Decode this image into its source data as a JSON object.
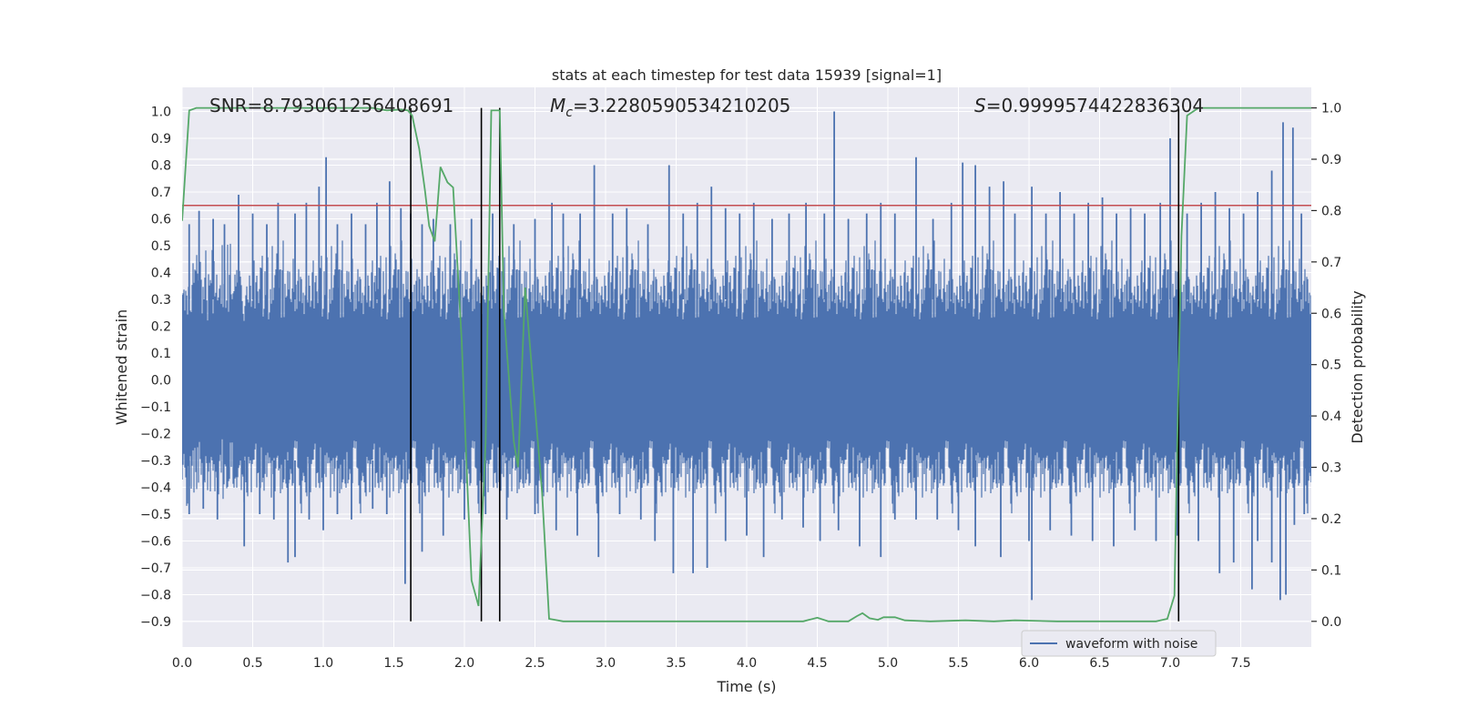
{
  "chart_data": {
    "type": "line",
    "title": "stats at each timestep for test data 15939 [signal=1]",
    "xlabel": "Time (s)",
    "ylabel": "Whitened strain",
    "y2label": "Detection probability",
    "xlim": [
      0.0,
      8.0
    ],
    "ylim": [
      -0.995,
      1.09
    ],
    "y2lim": [
      -0.05,
      1.04
    ],
    "x_ticks": [
      0.0,
      0.5,
      1.0,
      1.5,
      2.0,
      2.5,
      3.0,
      3.5,
      4.0,
      4.5,
      5.0,
      5.5,
      6.0,
      6.5,
      7.0,
      7.5
    ],
    "y_ticks": [
      -0.9,
      -0.8,
      -0.7,
      -0.6,
      -0.5,
      -0.4,
      -0.3,
      -0.2,
      -0.1,
      0.0,
      0.1,
      0.2,
      0.3,
      0.4,
      0.5,
      0.6,
      0.7,
      0.8,
      0.9,
      1.0
    ],
    "y2_ticks": [
      0.0,
      0.1,
      0.2,
      0.3,
      0.4,
      0.5,
      0.6,
      0.7,
      0.8,
      0.9,
      1.0
    ],
    "grid": true,
    "legend": {
      "location": "lower-right",
      "entries": [
        "waveform with noise"
      ]
    },
    "annotations": {
      "snr": "SNR=8.793061256408691",
      "mc_symbol": "M",
      "mc_sub": "c",
      "mc_value": "=3.2280590534210205",
      "s_symbol": "S",
      "s_value": "=0.9999574422836304"
    },
    "waveform": {
      "name": "waveform with noise",
      "color": "#4c72b0",
      "spikes": [
        [
          0.05,
          0.58
        ],
        [
          0.12,
          0.63
        ],
        [
          0.22,
          0.6
        ],
        [
          0.3,
          0.58
        ],
        [
          0.4,
          0.69
        ],
        [
          0.5,
          0.62
        ],
        [
          0.6,
          0.58
        ],
        [
          0.68,
          0.66
        ],
        [
          0.8,
          0.62
        ],
        [
          0.88,
          0.66
        ],
        [
          0.97,
          0.72
        ],
        [
          1.02,
          0.83
        ],
        [
          1.1,
          0.58
        ],
        [
          1.2,
          0.62
        ],
        [
          1.3,
          0.58
        ],
        [
          1.38,
          0.66
        ],
        [
          1.47,
          0.74
        ],
        [
          1.55,
          0.64
        ],
        [
          1.62,
          0.62
        ],
        [
          1.7,
          0.58
        ],
        [
          1.78,
          0.6
        ],
        [
          1.9,
          0.58
        ],
        [
          2.05,
          0.6
        ],
        [
          2.2,
          0.62
        ],
        [
          2.35,
          0.58
        ],
        [
          2.5,
          0.6
        ],
        [
          2.62,
          0.66
        ],
        [
          2.7,
          0.62
        ],
        [
          2.82,
          0.62
        ],
        [
          2.92,
          0.8
        ],
        [
          3.05,
          0.62
        ],
        [
          3.15,
          0.64
        ],
        [
          3.3,
          0.58
        ],
        [
          3.45,
          0.8
        ],
        [
          3.55,
          0.62
        ],
        [
          3.65,
          0.66
        ],
        [
          3.75,
          0.72
        ],
        [
          3.85,
          0.64
        ],
        [
          3.95,
          0.62
        ],
        [
          4.05,
          0.66
        ],
        [
          4.18,
          0.6
        ],
        [
          4.3,
          0.62
        ],
        [
          4.42,
          0.66
        ],
        [
          4.55,
          0.62
        ],
        [
          4.62,
          1.0
        ],
        [
          4.72,
          0.6
        ],
        [
          4.85,
          0.62
        ],
        [
          4.95,
          0.66
        ],
        [
          5.05,
          0.62
        ],
        [
          5.2,
          0.83
        ],
        [
          5.32,
          0.6
        ],
        [
          5.45,
          0.66
        ],
        [
          5.53,
          0.81
        ],
        [
          5.62,
          0.8
        ],
        [
          5.72,
          0.72
        ],
        [
          5.82,
          0.74
        ],
        [
          5.9,
          0.62
        ],
        [
          6.02,
          0.72
        ],
        [
          6.12,
          0.62
        ],
        [
          6.22,
          0.7
        ],
        [
          6.32,
          0.62
        ],
        [
          6.42,
          0.66
        ],
        [
          6.52,
          0.68
        ],
        [
          6.62,
          0.62
        ],
        [
          6.72,
          0.64
        ],
        [
          6.82,
          0.62
        ],
        [
          6.93,
          0.66
        ],
        [
          7.0,
          0.9
        ],
        [
          7.12,
          0.62
        ],
        [
          7.22,
          0.66
        ],
        [
          7.32,
          0.7
        ],
        [
          7.42,
          0.64
        ],
        [
          7.52,
          0.62
        ],
        [
          7.62,
          0.7
        ],
        [
          7.72,
          0.78
        ],
        [
          7.8,
          0.96
        ],
        [
          7.87,
          0.94
        ],
        [
          7.93,
          0.62
        ]
      ],
      "dips": [
        [
          0.05,
          -0.5
        ],
        [
          0.15,
          -0.48
        ],
        [
          0.25,
          -0.52
        ],
        [
          0.44,
          -0.62
        ],
        [
          0.55,
          -0.5
        ],
        [
          0.65,
          -0.52
        ],
        [
          0.75,
          -0.68
        ],
        [
          0.8,
          -0.66
        ],
        [
          0.9,
          -0.52
        ],
        [
          1.0,
          -0.56
        ],
        [
          1.1,
          -0.5
        ],
        [
          1.2,
          -0.52
        ],
        [
          1.35,
          -0.48
        ],
        [
          1.45,
          -0.5
        ],
        [
          1.58,
          -0.76
        ],
        [
          1.7,
          -0.64
        ],
        [
          1.85,
          -0.58
        ],
        [
          2.0,
          -0.52
        ],
        [
          2.15,
          -0.5
        ],
        [
          2.3,
          -0.52
        ],
        [
          2.5,
          -0.5
        ],
        [
          2.65,
          -0.56
        ],
        [
          2.8,
          -0.58
        ],
        [
          2.95,
          -0.66
        ],
        [
          3.1,
          -0.5
        ],
        [
          3.25,
          -0.52
        ],
        [
          3.35,
          -0.6
        ],
        [
          3.48,
          -0.72
        ],
        [
          3.62,
          -0.72
        ],
        [
          3.72,
          -0.7
        ],
        [
          3.85,
          -0.6
        ],
        [
          4.0,
          -0.58
        ],
        [
          4.12,
          -0.66
        ],
        [
          4.25,
          -0.52
        ],
        [
          4.4,
          -0.55
        ],
        [
          4.52,
          -0.6
        ],
        [
          4.65,
          -0.56
        ],
        [
          4.8,
          -0.62
        ],
        [
          4.95,
          -0.66
        ],
        [
          5.05,
          -0.52
        ],
        [
          5.2,
          -0.52
        ],
        [
          5.35,
          -0.52
        ],
        [
          5.5,
          -0.56
        ],
        [
          5.62,
          -0.62
        ],
        [
          5.8,
          -0.66
        ],
        [
          6.0,
          -0.6
        ],
        [
          6.02,
          -0.82
        ],
        [
          6.15,
          -0.56
        ],
        [
          6.3,
          -0.58
        ],
        [
          6.45,
          -0.6
        ],
        [
          6.6,
          -0.62
        ],
        [
          6.75,
          -0.56
        ],
        [
          6.9,
          -0.6
        ],
        [
          7.05,
          -0.58
        ],
        [
          7.2,
          -0.6
        ],
        [
          7.35,
          -0.72
        ],
        [
          7.45,
          -0.68
        ],
        [
          7.58,
          -0.78
        ],
        [
          7.62,
          -0.6
        ],
        [
          7.72,
          -0.68
        ],
        [
          7.78,
          -0.82
        ],
        [
          7.82,
          -0.8
        ],
        [
          7.88,
          -0.54
        ],
        [
          7.95,
          -0.5
        ]
      ]
    },
    "detection_probability": {
      "color": "#55a868",
      "points": [
        [
          0.0,
          0.78
        ],
        [
          0.05,
          0.995
        ],
        [
          0.1,
          1.0
        ],
        [
          0.4,
          1.0
        ],
        [
          0.8,
          1.0
        ],
        [
          1.2,
          1.0
        ],
        [
          1.35,
          1.0
        ],
        [
          1.45,
          0.995
        ],
        [
          1.55,
          0.997
        ],
        [
          1.6,
          0.995
        ],
        [
          1.63,
          0.985
        ],
        [
          1.68,
          0.92
        ],
        [
          1.72,
          0.84
        ],
        [
          1.75,
          0.77
        ],
        [
          1.79,
          0.74
        ],
        [
          1.83,
          0.885
        ],
        [
          1.88,
          0.855
        ],
        [
          1.92,
          0.845
        ],
        [
          1.98,
          0.55
        ],
        [
          2.02,
          0.27
        ],
        [
          2.05,
          0.08
        ],
        [
          2.1,
          0.03
        ],
        [
          2.15,
          0.35
        ],
        [
          2.19,
          0.995
        ],
        [
          2.25,
          0.995
        ],
        [
          2.28,
          0.6
        ],
        [
          2.35,
          0.35
        ],
        [
          2.38,
          0.3
        ],
        [
          2.43,
          0.65
        ],
        [
          2.49,
          0.45
        ],
        [
          2.55,
          0.25
        ],
        [
          2.6,
          0.005
        ],
        [
          2.7,
          0.0
        ],
        [
          2.9,
          0.0
        ],
        [
          3.2,
          0.0
        ],
        [
          3.5,
          0.0
        ],
        [
          3.8,
          0.0
        ],
        [
          4.1,
          0.0
        ],
        [
          4.4,
          0.0
        ],
        [
          4.5,
          0.007
        ],
        [
          4.58,
          0.0
        ],
        [
          4.72,
          0.0
        ],
        [
          4.78,
          0.01
        ],
        [
          4.82,
          0.016
        ],
        [
          4.87,
          0.006
        ],
        [
          4.93,
          0.003
        ],
        [
          4.97,
          0.008
        ],
        [
          5.05,
          0.008
        ],
        [
          5.12,
          0.002
        ],
        [
          5.3,
          0.0
        ],
        [
          5.55,
          0.002
        ],
        [
          5.75,
          0.0
        ],
        [
          5.9,
          0.002
        ],
        [
          6.2,
          0.0
        ],
        [
          6.6,
          0.0
        ],
        [
          6.9,
          0.0
        ],
        [
          6.98,
          0.005
        ],
        [
          7.03,
          0.05
        ],
        [
          7.05,
          0.35
        ],
        [
          7.08,
          0.75
        ],
        [
          7.12,
          0.985
        ],
        [
          7.2,
          1.0
        ],
        [
          7.5,
          1.0
        ],
        [
          8.0,
          1.0
        ]
      ]
    },
    "threshold": {
      "value": 0.81,
      "color": "#c44e52"
    },
    "vertical_markers": [
      1.62,
      2.12,
      2.25,
      7.06
    ]
  }
}
